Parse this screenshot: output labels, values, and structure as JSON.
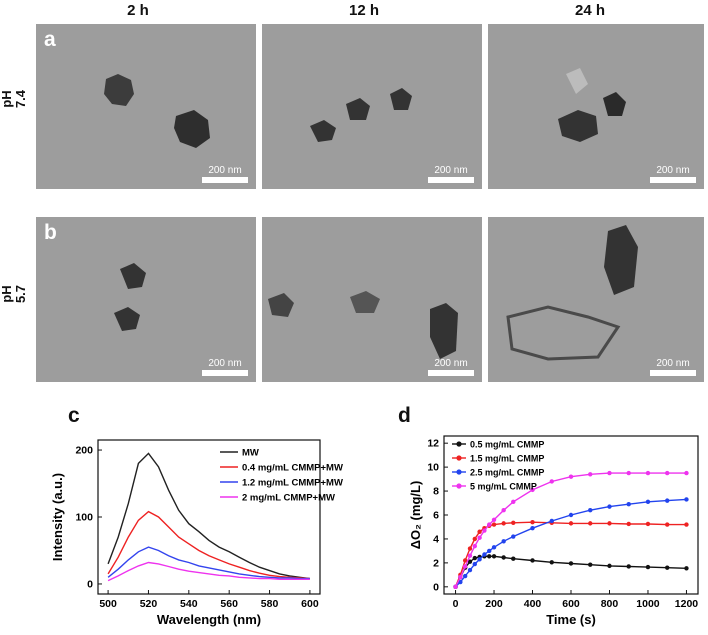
{
  "column_headers": [
    "2 h",
    "12 h",
    "24 h"
  ],
  "rows": [
    {
      "letter": "a",
      "label_line1": "pH",
      "label_line2": "7.4"
    },
    {
      "letter": "b",
      "label_line1": "pH",
      "label_line2": "5.7"
    }
  ],
  "scale_bar": "200 nm",
  "panel_c": {
    "letter": "c",
    "chart_data": {
      "type": "line",
      "xlabel": "Wavelength (nm)",
      "ylabel": "Intensity (a.u.)",
      "xlim": [
        495,
        605
      ],
      "ylim": [
        -15,
        215
      ],
      "xticks": [
        500,
        520,
        540,
        560,
        580,
        600
      ],
      "yticks": [
        0,
        100,
        200
      ],
      "legend_position": "top-right",
      "series": [
        {
          "name": "MW",
          "color": "#222222",
          "x": [
            500,
            505,
            510,
            515,
            520,
            525,
            530,
            535,
            540,
            545,
            550,
            555,
            560,
            565,
            570,
            575,
            580,
            585,
            590,
            595,
            600
          ],
          "values": [
            30,
            70,
            120,
            180,
            195,
            175,
            140,
            110,
            90,
            78,
            65,
            55,
            48,
            40,
            32,
            25,
            20,
            15,
            12,
            10,
            8
          ]
        },
        {
          "name": "0.4 mg/mL CMMP+MW",
          "color": "#ee2222",
          "x": [
            500,
            505,
            510,
            515,
            520,
            525,
            530,
            535,
            540,
            545,
            550,
            555,
            560,
            565,
            570,
            575,
            580,
            585,
            590,
            595,
            600
          ],
          "values": [
            15,
            40,
            70,
            95,
            108,
            100,
            85,
            70,
            60,
            50,
            42,
            36,
            30,
            25,
            20,
            16,
            13,
            11,
            10,
            9,
            8
          ]
        },
        {
          "name": "1.2 mg/mL CMMP+MW",
          "color": "#3344ee",
          "x": [
            500,
            505,
            510,
            515,
            520,
            525,
            530,
            535,
            540,
            545,
            550,
            555,
            560,
            565,
            570,
            575,
            580,
            585,
            590,
            595,
            600
          ],
          "values": [
            10,
            22,
            36,
            48,
            55,
            50,
            42,
            36,
            32,
            27,
            24,
            21,
            18,
            15,
            13,
            11,
            10,
            9,
            9,
            8,
            8
          ]
        },
        {
          "name": "2 mg/mL CMMP+MW",
          "color": "#ee33ee",
          "x": [
            500,
            505,
            510,
            515,
            520,
            525,
            530,
            535,
            540,
            545,
            550,
            555,
            560,
            565,
            570,
            575,
            580,
            585,
            590,
            595,
            600
          ],
          "values": [
            5,
            12,
            20,
            27,
            32,
            30,
            26,
            22,
            19,
            17,
            15,
            13,
            12,
            10,
            9,
            8,
            8,
            7,
            7,
            7,
            7
          ]
        }
      ]
    }
  },
  "panel_d": {
    "letter": "d",
    "chart_data": {
      "type": "line",
      "xlabel": "Time (s)",
      "ylabel": "ΔO₂ (mg/L)",
      "xlim": [
        -60,
        1260
      ],
      "ylim": [
        -0.6,
        12.6
      ],
      "xticks": [
        0,
        200,
        400,
        600,
        800,
        1000,
        1200
      ],
      "yticks": [
        0,
        2,
        4,
        6,
        8,
        10,
        12
      ],
      "legend_position": "top-left",
      "series": [
        {
          "name": "0.5 mg/mL CMMP",
          "color": "#111111",
          "x": [
            0,
            25,
            50,
            75,
            100,
            125,
            150,
            175,
            200,
            250,
            300,
            400,
            500,
            600,
            700,
            800,
            900,
            1000,
            1100,
            1200
          ],
          "values": [
            0,
            0.8,
            1.6,
            2.1,
            2.4,
            2.5,
            2.55,
            2.55,
            2.55,
            2.45,
            2.35,
            2.2,
            2.05,
            1.95,
            1.85,
            1.75,
            1.7,
            1.65,
            1.6,
            1.55
          ]
        },
        {
          "name": "1.5 mg/mL CMMP",
          "color": "#ee2222",
          "x": [
            0,
            25,
            50,
            75,
            100,
            125,
            150,
            175,
            200,
            250,
            300,
            400,
            500,
            600,
            700,
            800,
            900,
            1000,
            1100,
            1200
          ],
          "values": [
            0,
            1.0,
            2.2,
            3.2,
            4.0,
            4.6,
            4.9,
            5.1,
            5.2,
            5.3,
            5.35,
            5.4,
            5.35,
            5.3,
            5.3,
            5.3,
            5.25,
            5.25,
            5.2,
            5.2
          ]
        },
        {
          "name": "2.5 mg/mL CMMP",
          "color": "#2244ee",
          "x": [
            0,
            25,
            50,
            75,
            100,
            125,
            150,
            175,
            200,
            250,
            300,
            400,
            500,
            600,
            700,
            800,
            900,
            1000,
            1100,
            1200
          ],
          "values": [
            0,
            0.4,
            0.9,
            1.4,
            1.9,
            2.3,
            2.7,
            3.0,
            3.3,
            3.8,
            4.2,
            4.9,
            5.5,
            6.0,
            6.4,
            6.7,
            6.9,
            7.1,
            7.2,
            7.3
          ]
        },
        {
          "name": "5 mg/mL CMMP",
          "color": "#ee33ee",
          "x": [
            0,
            25,
            50,
            75,
            100,
            125,
            150,
            175,
            200,
            250,
            300,
            400,
            500,
            600,
            700,
            800,
            900,
            1000,
            1100,
            1200
          ],
          "values": [
            0,
            0.8,
            1.7,
            2.6,
            3.4,
            4.1,
            4.7,
            5.2,
            5.6,
            6.4,
            7.1,
            8.1,
            8.8,
            9.2,
            9.4,
            9.5,
            9.5,
            9.5,
            9.5,
            9.5
          ]
        }
      ]
    }
  }
}
